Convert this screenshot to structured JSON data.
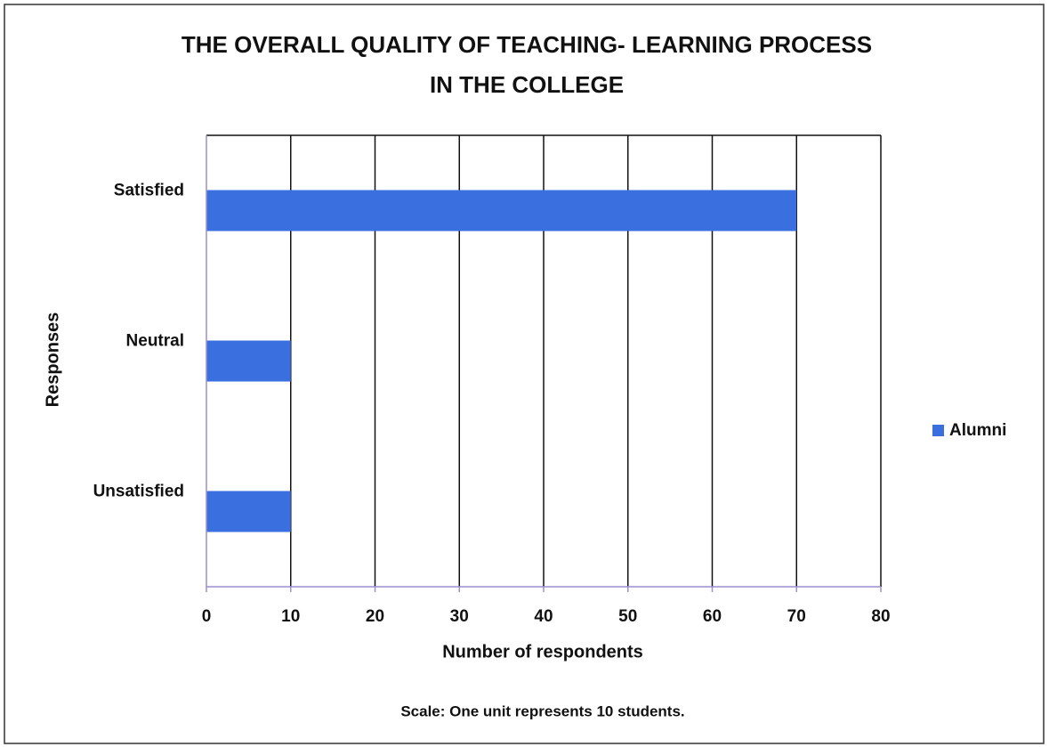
{
  "chart_data": {
    "type": "hbar",
    "title": [
      "THE OVERALL QUALITY OF TEACHING- LEARNING PROCESS",
      "IN THE COLLEGE"
    ],
    "categories": [
      "Satisfied",
      "Neutral",
      "Unsatisfied"
    ],
    "series": [
      {
        "name": "Alumni",
        "color": "#3a6fe0",
        "values": [
          70,
          10,
          10
        ]
      }
    ],
    "xlim": [
      0,
      80
    ],
    "xticks": [
      0,
      10,
      20,
      30,
      40,
      50,
      60,
      70,
      80
    ],
    "xlabel": "Number of respondents",
    "ylabel": "Responses",
    "note": "Scale: One unit represents 10 students.",
    "grid": true,
    "legend": "right"
  }
}
